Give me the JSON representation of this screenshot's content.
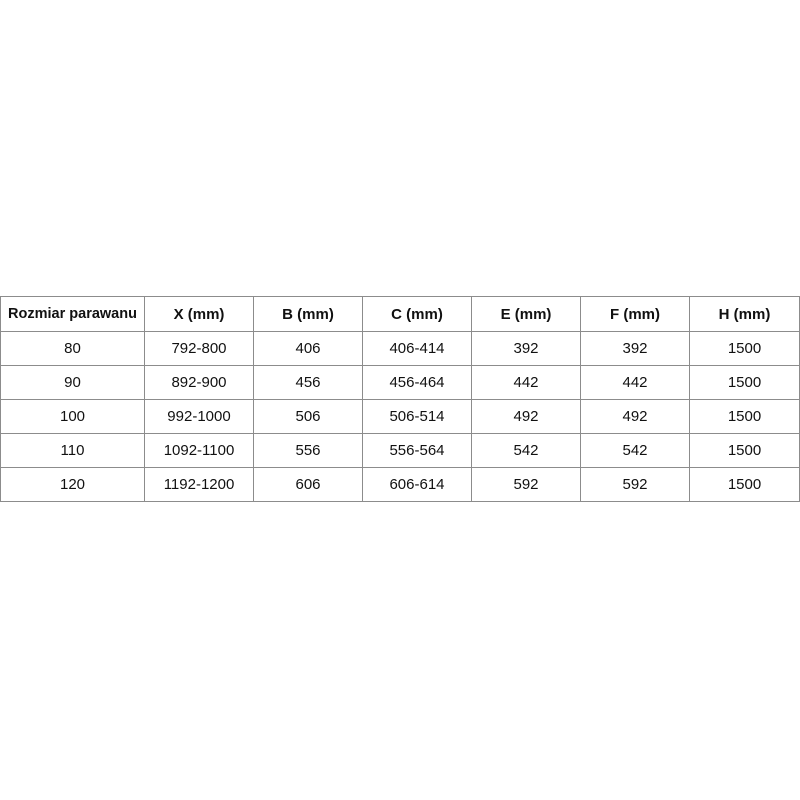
{
  "table": {
    "headers": [
      "Rozmiar parawanu",
      "X (mm)",
      "B (mm)",
      "C (mm)",
      "E (mm)",
      "F (mm)",
      "H (mm)"
    ],
    "rows": [
      [
        "80",
        "792-800",
        "406",
        "406-414",
        "392",
        "392",
        "1500"
      ],
      [
        "90",
        "892-900",
        "456",
        "456-464",
        "442",
        "442",
        "1500"
      ],
      [
        "100",
        "992-1000",
        "506",
        "506-514",
        "492",
        "492",
        "1500"
      ],
      [
        "110",
        "1092-1100",
        "556",
        "556-564",
        "542",
        "542",
        "1500"
      ],
      [
        "120",
        "1192-1200",
        "606",
        "606-614",
        "592",
        "592",
        "1500"
      ]
    ]
  }
}
